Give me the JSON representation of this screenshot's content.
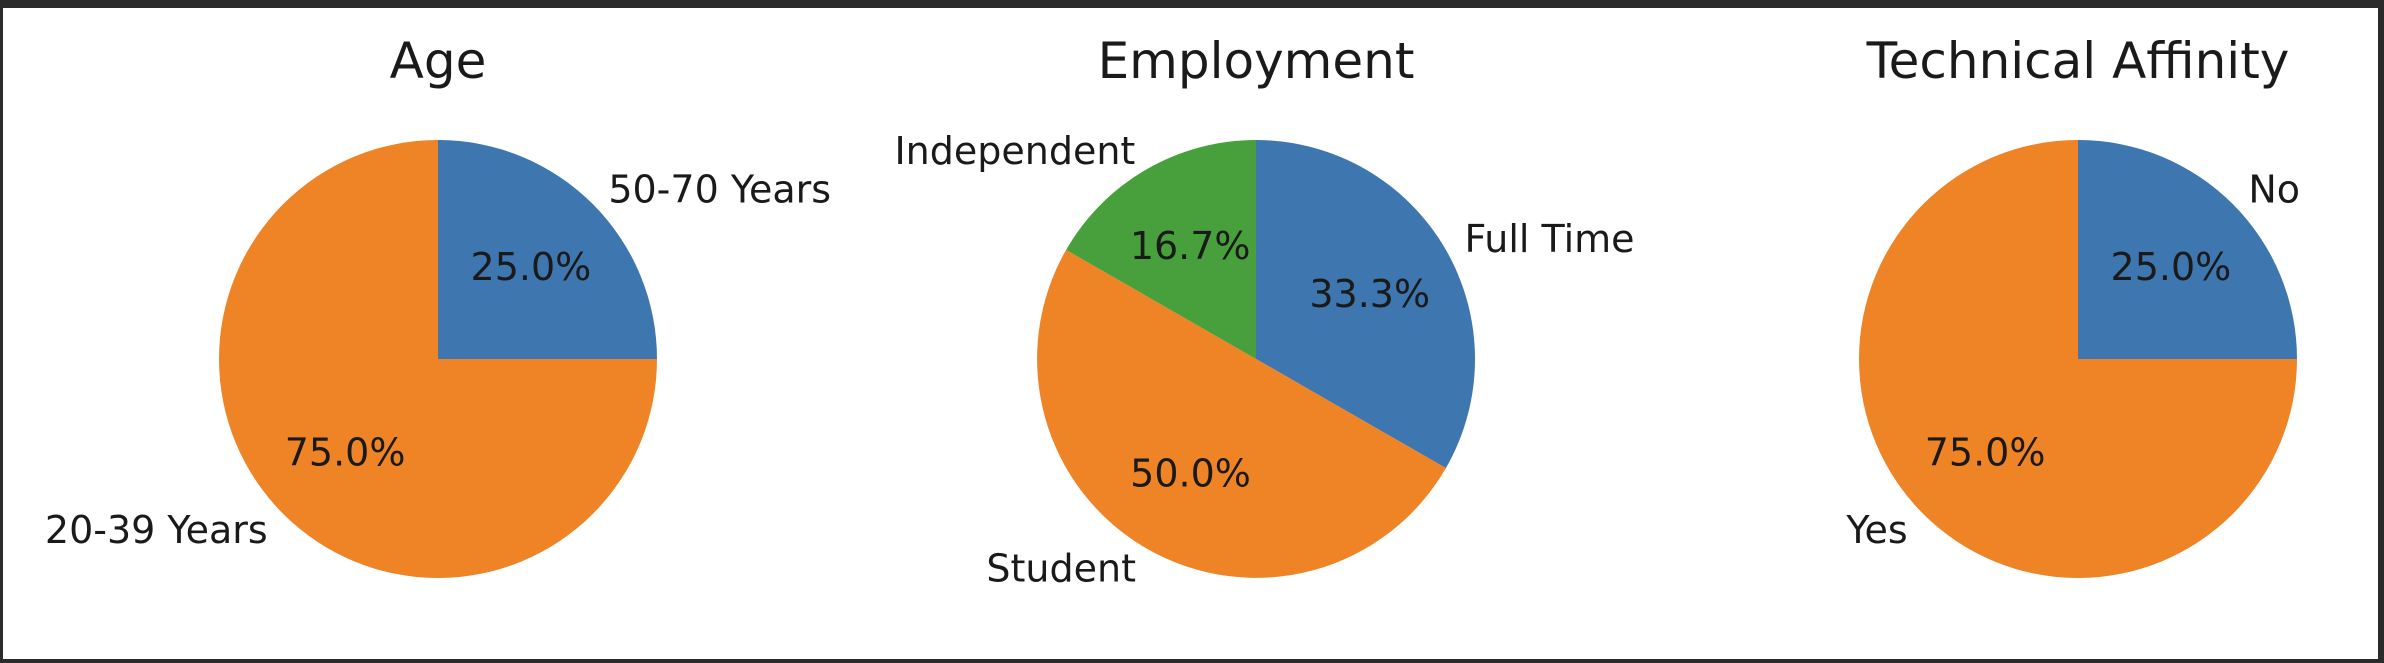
{
  "chart_data": [
    {
      "type": "pie",
      "title": "Age",
      "slices": [
        {
          "label": "50-70 Years",
          "value": 25.0,
          "pct_label": "25.0%",
          "color": "#3e76af"
        },
        {
          "label": "20-39 Years",
          "value": 75.0,
          "pct_label": "75.0%",
          "color": "#ef8427"
        }
      ]
    },
    {
      "type": "pie",
      "title": "Employment",
      "slices": [
        {
          "label": "Full Time",
          "value": 33.3,
          "pct_label": "33.3%",
          "color": "#3e76af"
        },
        {
          "label": "Student",
          "value": 50.0,
          "pct_label": "50.0%",
          "color": "#ef8427"
        },
        {
          "label": "Independent",
          "value": 16.7,
          "pct_label": "16.7%",
          "color": "#47a03b"
        }
      ]
    },
    {
      "type": "pie",
      "title": "Technical Affinity",
      "slices": [
        {
          "label": "No",
          "value": 25.0,
          "pct_label": "25.0%",
          "color": "#3e76af"
        },
        {
          "label": "Yes",
          "value": 75.0,
          "pct_label": "75.0%",
          "color": "#ef8427"
        }
      ]
    }
  ]
}
